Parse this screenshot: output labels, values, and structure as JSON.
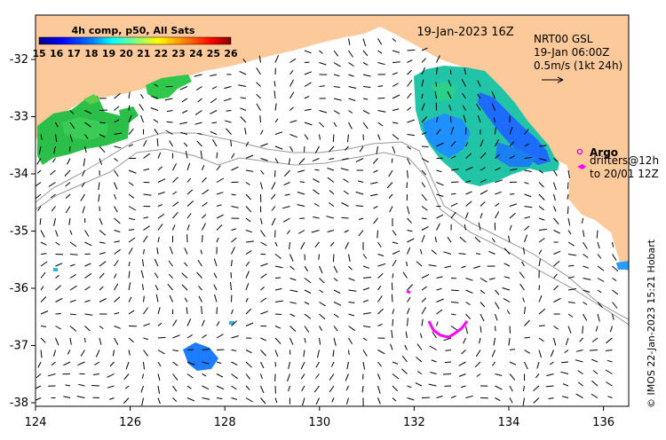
{
  "title": "19-Jan-2023 16Z",
  "colorbar": {
    "title": "4h comp, p50, All Sats",
    "ticks": [
      "15",
      "16",
      "17",
      "18",
      "19",
      "20",
      "21",
      "22",
      "23",
      "24",
      "25",
      "26"
    ]
  },
  "currents": {
    "line1": "NRT00 GSL",
    "line2": "19-Jan 06:00Z",
    "line3": "0.5m/s (1kt 24h)"
  },
  "legend": {
    "argo": "Argo",
    "drifters_line1": "drifters@12h",
    "drifters_line2": "to 20/01 12Z"
  },
  "credit": "© IMOS 22-Jan-2023 15:21 Hobart",
  "axes": {
    "x_ticks": [
      "124",
      "126",
      "128",
      "130",
      "132",
      "134",
      "136"
    ],
    "y_ticks": [
      "-32",
      "-33",
      "-34",
      "-35",
      "-36",
      "-37",
      "-38"
    ]
  },
  "colors": {
    "land": "#fcc99b",
    "argo": "#cc00cc",
    "drifter": "#ff00ff"
  }
}
